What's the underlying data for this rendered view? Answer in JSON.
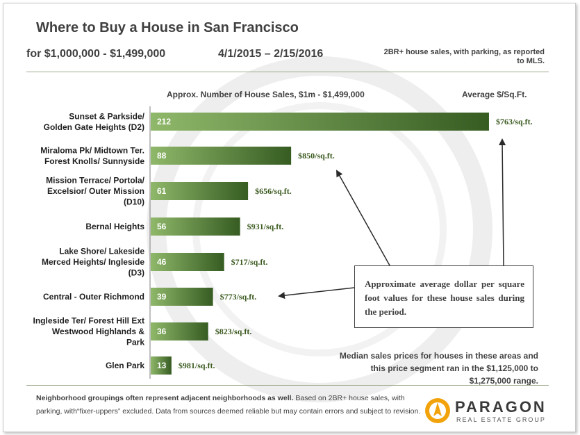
{
  "header": {
    "title": "Where to Buy a House in San Francisco",
    "subtitle": "for $1,000,000 - $1,499,000",
    "date_range": "4/1/2015 – 2/15/2016",
    "note": "2BR+ house sales, with parking, as reported to MLS."
  },
  "columns": {
    "left": "Approx. Number of House Sales, $1m - $1,499,000",
    "right": "Average  $/Sq.Ft."
  },
  "chart_data": {
    "type": "bar",
    "orientation": "horizontal",
    "title": "Approx. Number of House Sales, $1m - $1,499,000",
    "categories": [
      [
        "Sunset & Parkside/",
        "Golden Gate Heights (D2)"
      ],
      [
        "Miraloma Pk/ Midtown Ter.",
        "Forest Knolls/ Sunnyside"
      ],
      [
        "Mission Terrace/ Portola/",
        "Excelsior/ Outer Mission",
        "(D10)"
      ],
      [
        "Bernal Heights"
      ],
      [
        "Lake Shore/ Lakeside",
        "Merced Heights/ Ingleside",
        "(D3)"
      ],
      [
        "Central - Outer Richmond"
      ],
      [
        "Ingleside Ter/ Forest Hill Ext",
        "Westwood Highlands &",
        "Park"
      ],
      [
        "Glen Park"
      ]
    ],
    "values": [
      212,
      88,
      61,
      56,
      46,
      39,
      36,
      13
    ],
    "price_per_sqft_labels": [
      "$763/sq.ft.",
      "$850/sq.ft.",
      "$656/sq.ft.",
      "$931/sq.ft.",
      "$717/sq.ft.",
      "$773/sq.ft.",
      "$823/sq.ft.",
      "$981/sq.ft."
    ],
    "bar_gradient": [
      "#8fb86a",
      "#365c22"
    ],
    "grid": false
  },
  "callout": "Approximate average dollar per square foot values for these house sales during the period.",
  "median_note": "Median sales prices for houses in these areas and this price segment ran in the $1,125,000 to $1,275,000 range.",
  "footnote": {
    "bold": "Neighborhood groupings often represent adjacent neighborhoods as well.",
    "rest": " Based on 2BR+ house sales, with parking, with“fixer-uppers” excluded. Data from sources deemed reliable but may contain errors and subject to revision."
  },
  "logo": {
    "name": "PARAGON",
    "tagline": "REAL ESTATE GROUP",
    "icon": "paragon-sun-logo-icon"
  },
  "colors": {
    "text": "#404040",
    "price_text": "#3b5a1f",
    "logo_accent": "#f2a30c"
  }
}
